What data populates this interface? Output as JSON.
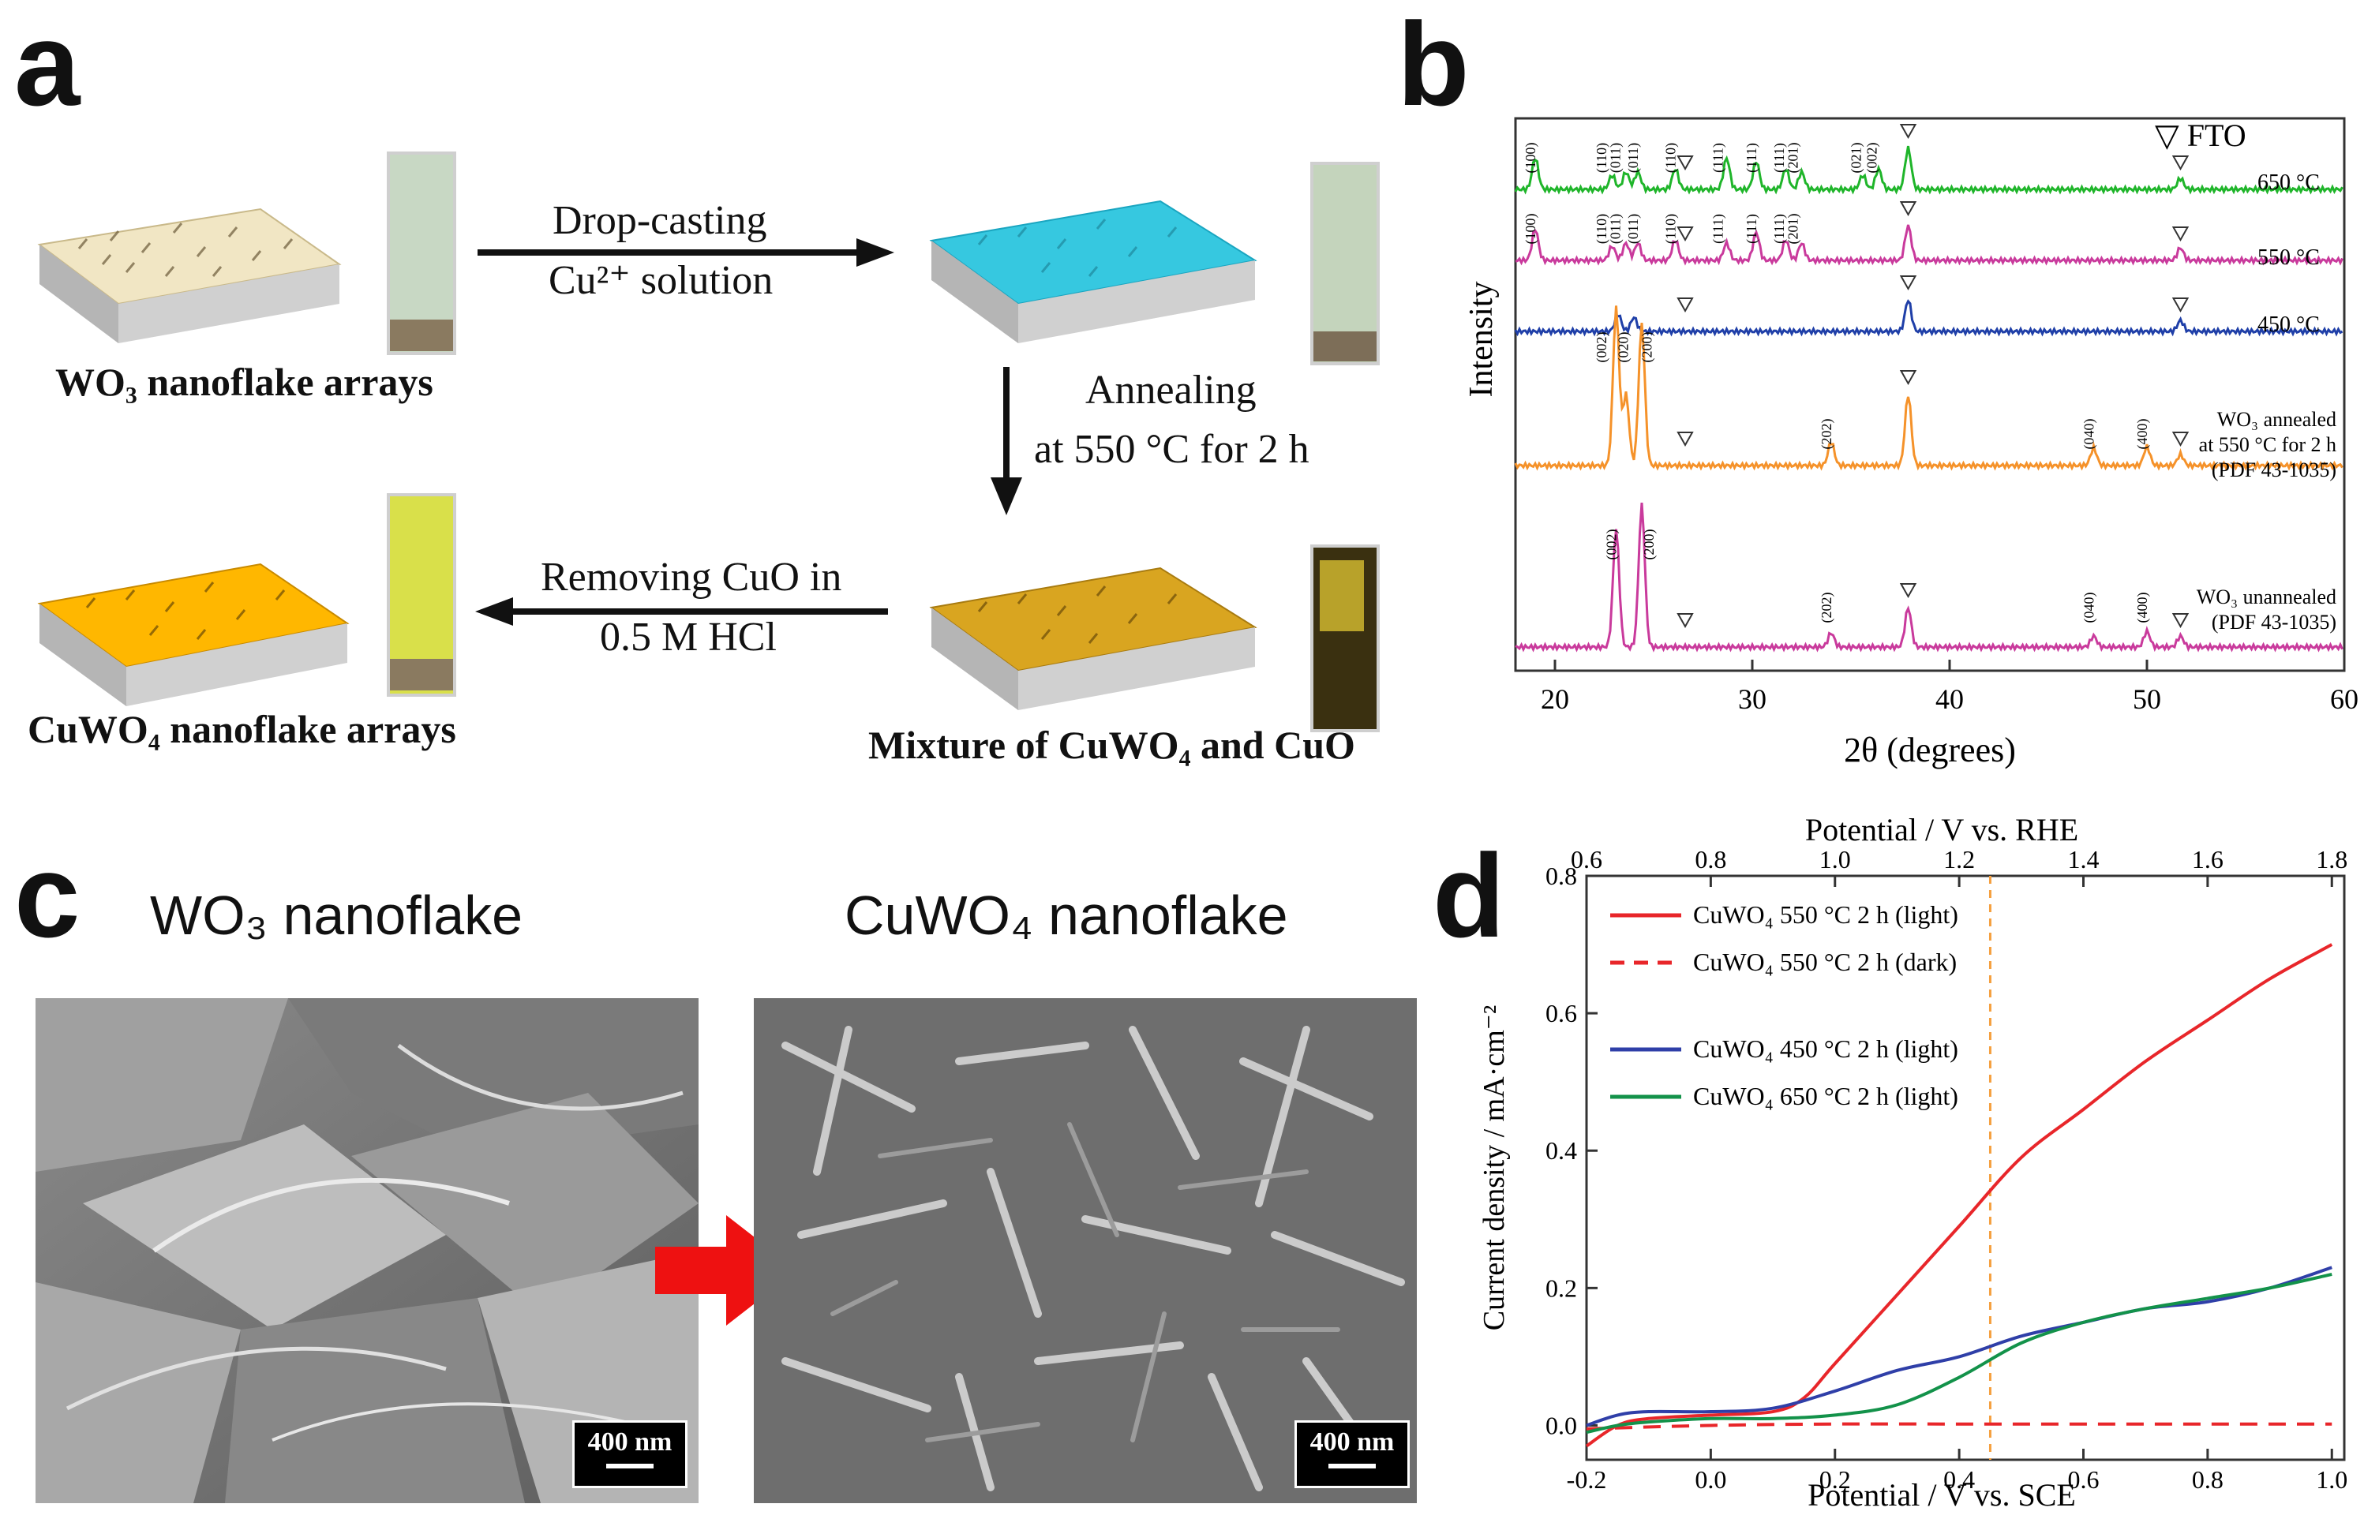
{
  "panels": {
    "a": {
      "letter": "a",
      "labels": {
        "wo3": "WO₃ nanoflake arrays",
        "mixture": "Mixture of CuWO₄ and CuO",
        "cuwo4": "CuWO₄ nanoflake arrays"
      },
      "steps": {
        "drop_line1": "Drop-casting",
        "drop_line2": "Cu²⁺ solution",
        "anneal_line1": "Annealing",
        "anneal_line2": "at 550 °C for 2 h",
        "remove_line1": "Removing CuO in",
        "remove_line2": "0.5 M HCl"
      },
      "colors": {
        "wo3": "#f1e6c4",
        "cu_soln": "#36c8e0",
        "mixture": "#d9a520",
        "cuwo4": "#ffb700"
      }
    },
    "b": {
      "letter": "b",
      "fto_legend": "▽ FTO",
      "temp_labels": [
        "650 °C",
        "550 °C",
        "450 °C"
      ],
      "wo3_annealed_lines": [
        "WO₃ annealed",
        "at 550 °C for 2 h",
        "(PDF 43-1035)"
      ],
      "wo3_unannealed_lines": [
        "WO₃ unannealed",
        "(PDF 43-1035)"
      ],
      "peak_labels": {
        "c650": [
          "(100)",
          "(110)",
          "(011)",
          "(011)",
          "(110)",
          "(111)",
          "(111)",
          "(111)",
          "(201)",
          "(021)",
          "(002)"
        ],
        "c550": [
          "(100)",
          "(110)",
          "(011)",
          "(011)",
          "(110)",
          "(111)",
          "(111)",
          "(111)",
          "(201)"
        ],
        "annealed": [
          "(002)",
          "(020)",
          "(200)",
          "(202)",
          "(040)",
          "(400)"
        ],
        "unannealed": [
          "(002)",
          "(200)",
          "(202)",
          "(040)",
          "(400)"
        ]
      }
    },
    "c": {
      "letter": "c",
      "left_title": "WO₃ nanoflake",
      "right_title": "CuWO₄ nanoflake",
      "scale_left": "400 nm",
      "scale_right": "400 nm"
    },
    "d": {
      "letter": "d"
    }
  },
  "chart_data": [
    {
      "type": "line",
      "title": "",
      "xlabel": "2θ (degrees)",
      "ylabel": "Intensity",
      "xlim": [
        18,
        60
      ],
      "xticks": [
        "20",
        "30",
        "40",
        "50",
        "60"
      ],
      "series": [
        {
          "name": "650 °C",
          "color": "#1fb52a",
          "peaks": [
            19.0,
            22.9,
            23.6,
            24.2,
            26.1,
            28.7,
            30.2,
            31.7,
            32.5,
            35.6,
            36.4,
            37.9,
            51.7
          ]
        },
        {
          "name": "550 °C",
          "color": "#c93a9c",
          "peaks": [
            19.0,
            22.9,
            23.6,
            24.2,
            26.1,
            28.7,
            30.2,
            31.7,
            32.5,
            37.9,
            51.7
          ]
        },
        {
          "name": "450 °C",
          "color": "#1f3fa8",
          "peaks": [
            23.2,
            24.0,
            37.9,
            51.7
          ]
        },
        {
          "name": "WO₃ annealed at 550 °C for 2 h",
          "color": "#f5922a",
          "peaks": [
            23.1,
            23.6,
            24.4,
            34.0,
            37.9,
            47.3,
            50.0,
            51.7
          ]
        },
        {
          "name": "WO₃ unannealed",
          "color": "#c93a9c",
          "peaks": [
            23.1,
            24.4,
            34.0,
            37.9,
            47.3,
            50.0,
            51.7
          ]
        }
      ],
      "fto_markers": [
        26.6,
        37.9,
        51.7
      ],
      "legend": "▽ FTO"
    },
    {
      "type": "line",
      "title": "",
      "xlabel": "Potential / V vs. SCE",
      "x2label": "Potential / V vs. RHE",
      "ylabel": "Current density / mA·cm⁻²",
      "xlim": [
        -0.2,
        1.02
      ],
      "ylim": [
        -0.05,
        0.8
      ],
      "xticks": [
        "-0.2",
        "0.0",
        "0.2",
        "0.4",
        "0.6",
        "0.8",
        "1.0"
      ],
      "x2ticks": [
        "0.6",
        "0.8",
        "1.0",
        "1.2",
        "1.4",
        "1.6",
        "1.8"
      ],
      "yticks": [
        "0.0",
        "0.2",
        "0.4",
        "0.6",
        "0.8"
      ],
      "reference_line_x": 0.45,
      "series": [
        {
          "name": "CuWO₄ 550 °C 2 h (light)",
          "color": "#e8262a",
          "style": "solid",
          "x": [
            -0.2,
            -0.15,
            -0.1,
            0.0,
            0.1,
            0.15,
            0.2,
            0.3,
            0.4,
            0.5,
            0.6,
            0.7,
            0.8,
            0.9,
            1.0
          ],
          "y": [
            -0.03,
            0.0,
            0.01,
            0.015,
            0.02,
            0.04,
            0.09,
            0.19,
            0.29,
            0.39,
            0.46,
            0.53,
            0.59,
            0.65,
            0.7
          ]
        },
        {
          "name": "CuWO₄ 550 °C 2 h (dark)",
          "color": "#e8262a",
          "style": "dashed",
          "x": [
            -0.2,
            0.0,
            0.2,
            0.4,
            0.6,
            0.8,
            1.0
          ],
          "y": [
            -0.005,
            0.0,
            0.002,
            0.002,
            0.002,
            0.002,
            0.002
          ]
        },
        {
          "name": "CuWO₄ 450 °C 2 h (light)",
          "color": "#2f3fa8",
          "style": "solid",
          "x": [
            -0.2,
            -0.15,
            -0.1,
            0.0,
            0.1,
            0.2,
            0.3,
            0.4,
            0.5,
            0.6,
            0.7,
            0.8,
            0.9,
            1.0
          ],
          "y": [
            0.0,
            0.015,
            0.02,
            0.02,
            0.025,
            0.05,
            0.08,
            0.1,
            0.13,
            0.15,
            0.17,
            0.18,
            0.2,
            0.23
          ]
        },
        {
          "name": "CuWO₄ 650 °C 2 h (light)",
          "color": "#13924a",
          "style": "solid",
          "x": [
            -0.2,
            -0.15,
            -0.1,
            0.0,
            0.1,
            0.2,
            0.3,
            0.4,
            0.5,
            0.6,
            0.7,
            0.8,
            0.9,
            1.0
          ],
          "y": [
            -0.01,
            0.0,
            0.005,
            0.01,
            0.01,
            0.015,
            0.03,
            0.07,
            0.12,
            0.15,
            0.17,
            0.185,
            0.2,
            0.22
          ]
        }
      ]
    }
  ]
}
